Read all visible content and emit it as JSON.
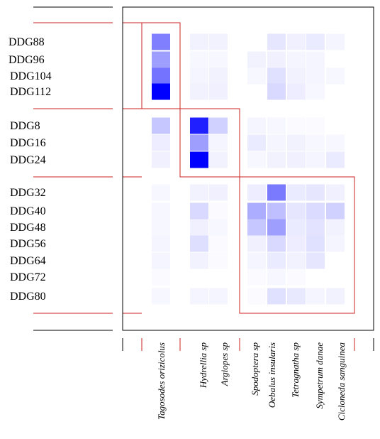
{
  "chart_data": {
    "type": "heatmap",
    "title": "",
    "xlabel": "",
    "ylabel": "",
    "color_scale": {
      "low": "#ffffff",
      "high": "#0000ff"
    },
    "frame_color": "#000000",
    "group_color": "#cc2222",
    "rows": [
      "DDG88",
      "DDG96",
      "DDG104",
      "DDG112",
      "DDG8",
      "DDG16",
      "DDG24",
      "DDG32",
      "DDG40",
      "DDG48",
      "DDG56",
      "DDG64",
      "DDG72",
      "DDG80"
    ],
    "row_groups": [
      [
        0,
        3
      ],
      [
        4,
        6
      ],
      [
        7,
        13
      ]
    ],
    "columns": [
      "Tagosodes orizicolus",
      "Hydrellia sp",
      "Argiopes sp",
      "Spodoptera sp",
      "Oebalus insularis",
      "Tetragnatha sp",
      "Sympetrum danae",
      "Cicloneda sanguinea"
    ],
    "column_groups": [
      [
        0,
        0
      ],
      [
        1,
        2
      ],
      [
        3,
        7
      ]
    ],
    "values": [
      [
        0.5,
        0.05,
        0.05,
        0.0,
        0.1,
        0.06,
        0.08,
        0.04
      ],
      [
        0.38,
        0.03,
        0.03,
        0.05,
        0.06,
        0.04,
        0.04,
        0.0
      ],
      [
        0.55,
        0.04,
        0.05,
        0.03,
        0.12,
        0.05,
        0.04,
        0.03
      ],
      [
        1.0,
        0.05,
        0.06,
        0.0,
        0.15,
        0.07,
        0.03,
        0.0
      ],
      [
        0.22,
        0.88,
        0.18,
        0.04,
        0.03,
        0.02,
        0.02,
        0.0
      ],
      [
        0.07,
        0.38,
        0.04,
        0.08,
        0.04,
        0.05,
        0.03,
        0.03
      ],
      [
        0.06,
        1.0,
        0.05,
        0.03,
        0.05,
        0.06,
        0.04,
        0.08
      ],
      [
        0.03,
        0.05,
        0.06,
        0.07,
        0.52,
        0.08,
        0.1,
        0.06
      ],
      [
        0.03,
        0.15,
        0.02,
        0.32,
        0.25,
        0.1,
        0.14,
        0.18
      ],
      [
        0.03,
        0.06,
        0.03,
        0.22,
        0.38,
        0.08,
        0.11,
        0.05
      ],
      [
        0.04,
        0.13,
        0.02,
        0.06,
        0.15,
        0.07,
        0.12,
        0.04
      ],
      [
        0.04,
        0.05,
        0.02,
        0.04,
        0.08,
        0.05,
        0.1,
        0.0
      ],
      [
        0.02,
        0.0,
        0.0,
        0.02,
        0.03,
        0.02,
        0.0,
        0.0
      ],
      [
        0.03,
        0.04,
        0.04,
        0.02,
        0.12,
        0.09,
        0.04,
        0.05
      ]
    ]
  }
}
